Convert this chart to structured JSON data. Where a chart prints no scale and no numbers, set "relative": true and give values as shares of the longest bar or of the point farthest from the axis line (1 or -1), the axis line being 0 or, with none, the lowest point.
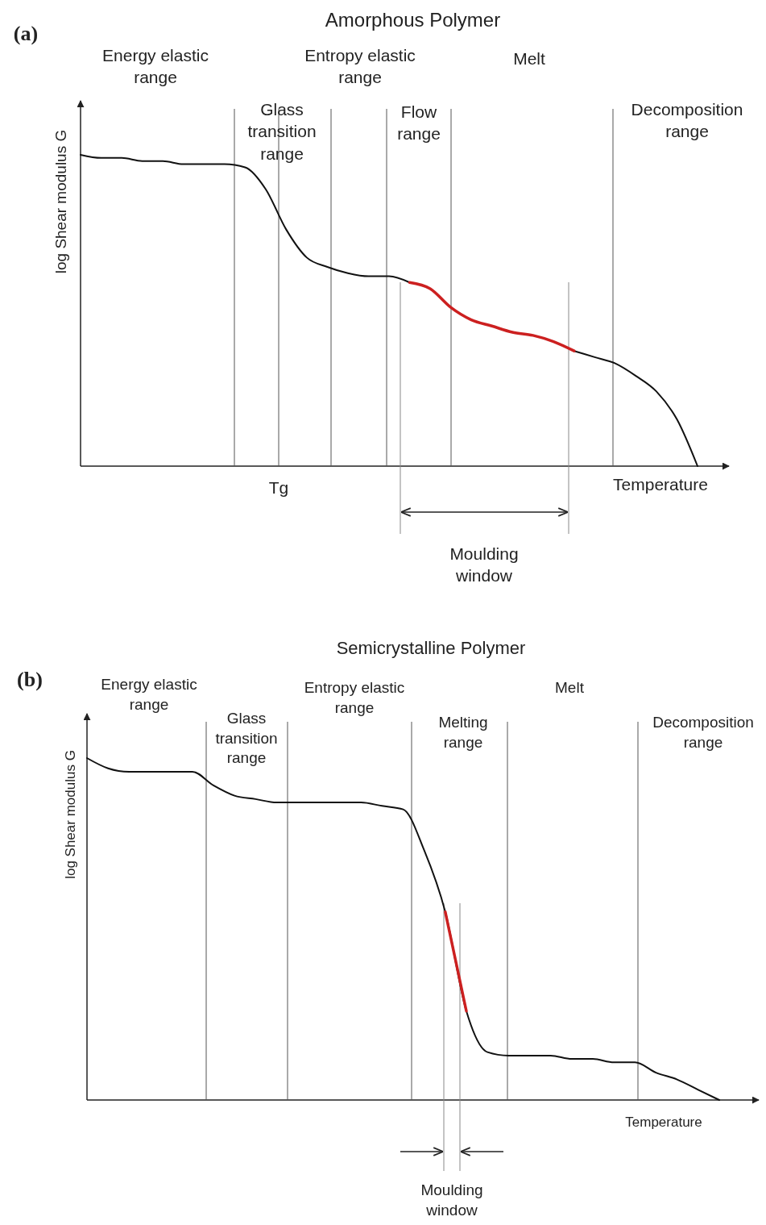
{
  "chart_data": [
    {
      "type": "line",
      "title": "Amorphous Polymer",
      "xlabel": "Temperature",
      "ylabel": "log Shear modulus G",
      "relative": true,
      "tick_labels": false,
      "grid": "x",
      "categories": [
        null,
        null,
        null,
        null,
        null,
        null,
        null,
        null,
        null,
        null,
        null,
        null,
        null,
        null,
        null,
        null,
        null,
        null,
        null,
        null,
        null,
        null,
        null,
        null,
        null,
        null,
        null,
        null,
        null,
        null,
        null
      ],
      "series": [
        {
          "color": "#111111",
          "values": [
            1.0,
            0.99,
            0.99,
            0.98,
            0.98,
            0.97,
            0.97,
            0.97,
            0.96,
            0.89,
            0.76,
            0.67,
            0.64,
            0.62,
            0.61,
            0.61,
            0.59,
            null,
            null,
            null,
            null,
            null,
            null,
            null,
            0.37,
            0.35,
            0.33,
            0.29,
            0.24,
            0.15,
            0
          ]
        },
        {
          "color": "#cc2020",
          "values": [
            null,
            null,
            null,
            null,
            null,
            null,
            null,
            null,
            null,
            null,
            null,
            null,
            null,
            null,
            null,
            null,
            0.59,
            0.57,
            0.51,
            0.47,
            0.45,
            0.43,
            0.42,
            0.4,
            0.37,
            null,
            null,
            null,
            null,
            null,
            null
          ]
        }
      ],
      "annotations": [
        "(a)",
        "Energy elastic range",
        "Entropy elastic range",
        "Melt",
        "Glass transition range",
        "Flow range",
        "Decomposition range",
        "Tg",
        "Moulding window"
      ]
    },
    {
      "type": "line",
      "title": "Semicrystalline Polymer",
      "xlabel": "Temperature",
      "ylabel": "log Shear modulus G",
      "relative": true,
      "tick_labels": false,
      "grid": "x",
      "categories": [
        null,
        null,
        null,
        null,
        null,
        null,
        null,
        null,
        null,
        null,
        null,
        null,
        null,
        null,
        null,
        null,
        null,
        null,
        null,
        null,
        null,
        null,
        null,
        null,
        null,
        null,
        null,
        null,
        null,
        null,
        null
      ],
      "series": [
        {
          "color": "#111111",
          "values": [
            1.0,
            0.97,
            0.96,
            0.96,
            0.96,
            0.96,
            0.92,
            0.89,
            0.88,
            0.87,
            0.87,
            0.87,
            0.87,
            0.87,
            0.86,
            0.85,
            0.73,
            0.55,
            0.26,
            0.14,
            0.13,
            0.13,
            0.13,
            0.12,
            0.12,
            0.11,
            0.11,
            0.08,
            0.06,
            0.03,
            0
          ]
        },
        {
          "color": "#cc2020",
          "values": [
            null,
            null,
            null,
            null,
            null,
            null,
            null,
            null,
            null,
            null,
            null,
            null,
            null,
            null,
            null,
            null,
            null,
            0.55,
            0.26,
            null,
            null,
            null,
            null,
            null,
            null,
            null,
            null,
            null,
            null,
            null,
            null
          ]
        }
      ],
      "annotations": [
        "(b)",
        "Energy elastic range",
        "Entropy elastic range",
        "Melt",
        "Glass transition range",
        "Melting range",
        "Decomposition range",
        "Moulding window"
      ]
    }
  ]
}
